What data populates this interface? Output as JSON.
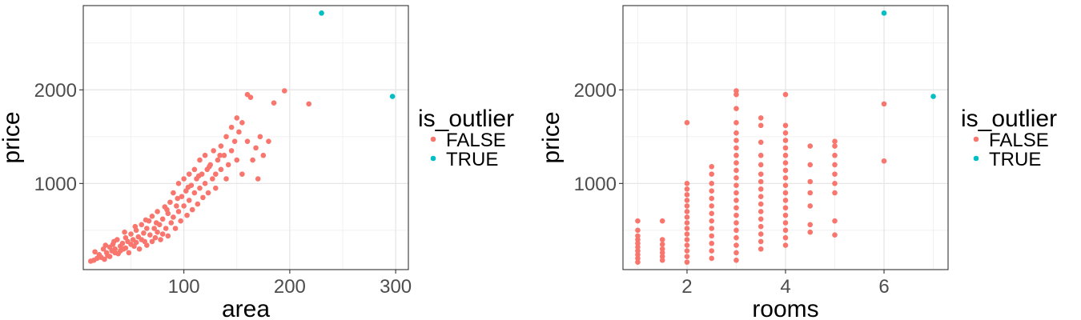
{
  "chart_data": [
    {
      "type": "scatter",
      "title": "",
      "xlabel": "area",
      "ylabel": "price",
      "xlim": [
        5,
        312
      ],
      "ylim": [
        80,
        2900
      ],
      "x_ticks": [
        100,
        200,
        300
      ],
      "y_ticks": [
        1000,
        2000
      ],
      "grid": true,
      "legend": {
        "title": "is_outlier",
        "position": "right",
        "entries": [
          "FALSE",
          "TRUE"
        ]
      },
      "series": [
        {
          "name": "FALSE",
          "color": "#F8766D",
          "points": [
            [
              15,
              180
            ],
            [
              18,
              200
            ],
            [
              20,
              240
            ],
            [
              22,
              210
            ],
            [
              24,
              300
            ],
            [
              25,
              190
            ],
            [
              27,
              260
            ],
            [
              28,
              230
            ],
            [
              30,
              220
            ],
            [
              30,
              320
            ],
            [
              32,
              280
            ],
            [
              33,
              350
            ],
            [
              35,
              260
            ],
            [
              35,
              300
            ],
            [
              37,
              400
            ],
            [
              38,
              250
            ],
            [
              40,
              330
            ],
            [
              40,
              280
            ],
            [
              42,
              360
            ],
            [
              43,
              300
            ],
            [
              45,
              420
            ],
            [
              45,
              310
            ],
            [
              47,
              380
            ],
            [
              48,
              260
            ],
            [
              50,
              350
            ],
            [
              50,
              460
            ],
            [
              52,
              400
            ],
            [
              53,
              330
            ],
            [
              55,
              500
            ],
            [
              55,
              370
            ],
            [
              57,
              430
            ],
            [
              58,
              300
            ],
            [
              60,
              560
            ],
            [
              60,
              400
            ],
            [
              62,
              470
            ],
            [
              63,
              380
            ],
            [
              65,
              520
            ],
            [
              65,
              340
            ],
            [
              67,
              600
            ],
            [
              68,
              450
            ],
            [
              70,
              380
            ],
            [
              70,
              650
            ],
            [
              72,
              520
            ],
            [
              73,
              420
            ],
            [
              75,
              700
            ],
            [
              75,
              480
            ],
            [
              77,
              560
            ],
            [
              78,
              400
            ],
            [
              80,
              620
            ],
            [
              80,
              460
            ],
            [
              82,
              750
            ],
            [
              83,
              520
            ],
            [
              85,
              680
            ],
            [
              85,
              440
            ],
            [
              87,
              800
            ],
            [
              88,
              580
            ],
            [
              90,
              900
            ],
            [
              90,
              640
            ],
            [
              92,
              520
            ],
            [
              93,
              760
            ],
            [
              95,
              1000
            ],
            [
              95,
              700
            ],
            [
              97,
              600
            ],
            [
              98,
              860
            ],
            [
              100,
              1050
            ],
            [
              100,
              760
            ],
            [
              102,
              920
            ],
            [
              103,
              660
            ],
            [
              105,
              1100
            ],
            [
              105,
              820
            ],
            [
              107,
              980
            ],
            [
              108,
              720
            ],
            [
              110,
              1150
            ],
            [
              110,
              900
            ],
            [
              112,
              1050
            ],
            [
              113,
              780
            ],
            [
              115,
              1250
            ],
            [
              115,
              950
            ],
            [
              117,
              1100
            ],
            [
              118,
              850
            ],
            [
              120,
              1300
            ],
            [
              120,
              1000
            ],
            [
              122,
              1150
            ],
            [
              123,
              900
            ],
            [
              125,
              1200
            ],
            [
              127,
              1050
            ],
            [
              128,
              1350
            ],
            [
              130,
              1100
            ],
            [
              130,
              950
            ],
            [
              132,
              1250
            ],
            [
              135,
              1400
            ],
            [
              135,
              1150
            ],
            [
              138,
              1300
            ],
            [
              140,
              1500
            ],
            [
              140,
              1050
            ],
            [
              142,
              1200
            ],
            [
              145,
              1600
            ],
            [
              145,
              1350
            ],
            [
              148,
              1450
            ],
            [
              150,
              1700
            ],
            [
              150,
              1250
            ],
            [
              152,
              1550
            ],
            [
              155,
              1650
            ],
            [
              155,
              1100
            ],
            [
              160,
              1950
            ],
            [
              160,
              1450
            ],
            [
              163,
              1920
            ],
            [
              165,
              1250
            ],
            [
              168,
              1380
            ],
            [
              170,
              1050
            ],
            [
              172,
              1500
            ],
            [
              175,
              1300
            ],
            [
              180,
              1450
            ],
            [
              185,
              1860
            ],
            [
              195,
              1990
            ],
            [
              218,
              1850
            ],
            [
              12,
              170
            ],
            [
              16,
              270
            ],
            [
              26,
              340
            ],
            [
              34,
              380
            ],
            [
              44,
              480
            ],
            [
              54,
              540
            ],
            [
              64,
              610
            ],
            [
              74,
              580
            ],
            [
              84,
              720
            ],
            [
              94,
              840
            ],
            [
              104,
              960
            ],
            [
              114,
              1080
            ],
            [
              124,
              1180
            ],
            [
              134,
              1300
            ]
          ]
        },
        {
          "name": "TRUE",
          "color": "#00BFC4",
          "points": [
            [
              230,
              2820
            ],
            [
              297,
              1930
            ]
          ]
        }
      ]
    },
    {
      "type": "scatter",
      "title": "",
      "xlabel": "rooms",
      "ylabel": "price",
      "xlim": [
        0.7,
        7.3
      ],
      "ylim": [
        80,
        2900
      ],
      "x_ticks": [
        2,
        4,
        6
      ],
      "y_ticks": [
        1000,
        2000
      ],
      "grid": true,
      "legend": {
        "title": "is_outlier",
        "position": "right",
        "entries": [
          "FALSE",
          "TRUE"
        ]
      },
      "series": [
        {
          "name": "FALSE",
          "color": "#F8766D",
          "points": [
            [
              1,
              160
            ],
            [
              1,
              200
            ],
            [
              1,
              240
            ],
            [
              1,
              280
            ],
            [
              1,
              320
            ],
            [
              1,
              360
            ],
            [
              1,
              400
            ],
            [
              1,
              440
            ],
            [
              1,
              500
            ],
            [
              1,
              600
            ],
            [
              1.5,
              180
            ],
            [
              1.5,
              220
            ],
            [
              1.5,
              260
            ],
            [
              1.5,
              300
            ],
            [
              1.5,
              350
            ],
            [
              1.5,
              400
            ],
            [
              1.5,
              600
            ],
            [
              2,
              160
            ],
            [
              2,
              220
            ],
            [
              2,
              280
            ],
            [
              2,
              340
            ],
            [
              2,
              400
            ],
            [
              2,
              460
            ],
            [
              2,
              520
            ],
            [
              2,
              580
            ],
            [
              2,
              640
            ],
            [
              2,
              700
            ],
            [
              2,
              760
            ],
            [
              2,
              820
            ],
            [
              2,
              880
            ],
            [
              2,
              940
            ],
            [
              2,
              1000
            ],
            [
              2,
              1650
            ],
            [
              2.5,
              200
            ],
            [
              2.5,
              280
            ],
            [
              2.5,
              360
            ],
            [
              2.5,
              440
            ],
            [
              2.5,
              520
            ],
            [
              2.5,
              600
            ],
            [
              2.5,
              680
            ],
            [
              2.5,
              760
            ],
            [
              2.5,
              840
            ],
            [
              2.5,
              920
            ],
            [
              2.5,
              1000
            ],
            [
              2.5,
              1100
            ],
            [
              2.5,
              1180
            ],
            [
              3,
              180
            ],
            [
              3,
              260
            ],
            [
              3,
              340
            ],
            [
              3,
              420
            ],
            [
              3,
              500
            ],
            [
              3,
              580
            ],
            [
              3,
              660
            ],
            [
              3,
              740
            ],
            [
              3,
              820
            ],
            [
              3,
              900
            ],
            [
              3,
              980
            ],
            [
              3,
              1060
            ],
            [
              3,
              1140
            ],
            [
              3,
              1220
            ],
            [
              3,
              1300
            ],
            [
              3,
              1380
            ],
            [
              3,
              1460
            ],
            [
              3,
              1540
            ],
            [
              3,
              1650
            ],
            [
              3,
              1800
            ],
            [
              3,
              1950
            ],
            [
              3,
              1990
            ],
            [
              3.5,
              300
            ],
            [
              3.5,
              380
            ],
            [
              3.5,
              460
            ],
            [
              3.5,
              540
            ],
            [
              3.5,
              620
            ],
            [
              3.5,
              700
            ],
            [
              3.5,
              780
            ],
            [
              3.5,
              860
            ],
            [
              3.5,
              940
            ],
            [
              3.5,
              1020
            ],
            [
              3.5,
              1100
            ],
            [
              3.5,
              1200
            ],
            [
              3.5,
              1300
            ],
            [
              3.5,
              1440
            ],
            [
              3.5,
              1620
            ],
            [
              3.5,
              1700
            ],
            [
              4,
              340
            ],
            [
              4,
              420
            ],
            [
              4,
              500
            ],
            [
              4,
              580
            ],
            [
              4,
              660
            ],
            [
              4,
              740
            ],
            [
              4,
              820
            ],
            [
              4,
              900
            ],
            [
              4,
              980
            ],
            [
              4,
              1060
            ],
            [
              4,
              1140
            ],
            [
              4,
              1220
            ],
            [
              4,
              1300
            ],
            [
              4,
              1380
            ],
            [
              4,
              1460
            ],
            [
              4,
              1540
            ],
            [
              4,
              1620
            ],
            [
              4,
              1950
            ],
            [
              4.5,
              480
            ],
            [
              4.5,
              560
            ],
            [
              4.5,
              760
            ],
            [
              4.5,
              900
            ],
            [
              4.5,
              1020
            ],
            [
              4.5,
              1200
            ],
            [
              4.5,
              1400
            ],
            [
              5,
              450
            ],
            [
              5,
              600
            ],
            [
              5,
              900
            ],
            [
              5,
              1000
            ],
            [
              5,
              1100
            ],
            [
              5,
              1200
            ],
            [
              5,
              1300
            ],
            [
              5,
              1400
            ],
            [
              5,
              1450
            ],
            [
              6,
              1240
            ],
            [
              6,
              1850
            ]
          ]
        },
        {
          "name": "TRUE",
          "color": "#00BFC4",
          "points": [
            [
              6,
              2820
            ],
            [
              7,
              1930
            ]
          ]
        }
      ]
    }
  ]
}
